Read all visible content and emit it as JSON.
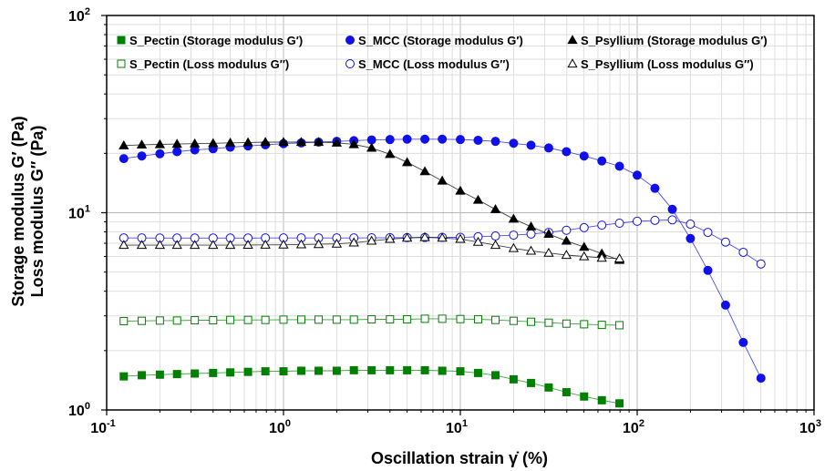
{
  "chart_data": {
    "type": "scatter",
    "xlabel": "Oscillation strain γ̇ (%)",
    "ylabel_line1": "Storage modulus  G′ (Pa)",
    "ylabel_line2": "Loss modulus  G″ (Pa)",
    "x_scale": "log",
    "y_scale": "log",
    "xlim": [
      0.1,
      1000
    ],
    "ylim": [
      1,
      100
    ],
    "x_ticks": [
      {
        "value": 0.1,
        "base": "10",
        "exp": "-1"
      },
      {
        "value": 1,
        "base": "10",
        "exp": "0"
      },
      {
        "value": 10,
        "base": "10",
        "exp": "1"
      },
      {
        "value": 100,
        "base": "10",
        "exp": "2"
      },
      {
        "value": 1000,
        "base": "10",
        "exp": "3"
      }
    ],
    "y_ticks": [
      {
        "value": 1,
        "base": "10",
        "exp": "0"
      },
      {
        "value": 10,
        "base": "10",
        "exp": "1"
      },
      {
        "value": 100,
        "base": "10",
        "exp": "2"
      }
    ],
    "grid": true,
    "legend_position": "top",
    "series": [
      {
        "name": "S_Pectin (Storage modulus G′)",
        "color": "#008000",
        "marker": "square",
        "filled": true,
        "x": [
          0.125,
          0.158,
          0.2,
          0.25,
          0.315,
          0.4,
          0.5,
          0.63,
          0.79,
          1.0,
          1.26,
          1.58,
          2.0,
          2.5,
          3.15,
          4.0,
          5.0,
          6.3,
          7.9,
          10.0,
          12.6,
          15.8,
          20.0,
          25.1,
          31.6,
          39.8,
          50.1,
          63.1,
          79.4
        ],
        "y": [
          1.48,
          1.5,
          1.51,
          1.52,
          1.53,
          1.54,
          1.55,
          1.56,
          1.57,
          1.57,
          1.58,
          1.58,
          1.58,
          1.59,
          1.59,
          1.59,
          1.59,
          1.59,
          1.58,
          1.57,
          1.54,
          1.5,
          1.43,
          1.37,
          1.3,
          1.23,
          1.17,
          1.12,
          1.08
        ]
      },
      {
        "name": "S_Pectin (Loss modulus G″)",
        "color": "#008000",
        "marker": "square",
        "filled": false,
        "x": [
          0.125,
          0.158,
          0.2,
          0.25,
          0.315,
          0.4,
          0.5,
          0.63,
          0.79,
          1.0,
          1.26,
          1.58,
          2.0,
          2.5,
          3.15,
          4.0,
          5.0,
          6.3,
          7.9,
          10.0,
          12.6,
          15.8,
          20.0,
          25.1,
          31.6,
          39.8,
          50.1,
          63.1,
          79.4
        ],
        "y": [
          2.82,
          2.83,
          2.84,
          2.84,
          2.85,
          2.85,
          2.86,
          2.86,
          2.86,
          2.87,
          2.87,
          2.87,
          2.87,
          2.87,
          2.88,
          2.88,
          2.88,
          2.9,
          2.9,
          2.89,
          2.88,
          2.86,
          2.83,
          2.8,
          2.77,
          2.74,
          2.72,
          2.7,
          2.69
        ]
      },
      {
        "name": "S_MCC (Storage modulus G′)",
        "color": "#1010e8",
        "marker": "circle",
        "filled": true,
        "x": [
          0.125,
          0.158,
          0.2,
          0.25,
          0.315,
          0.4,
          0.5,
          0.63,
          0.79,
          1.0,
          1.26,
          1.58,
          2.0,
          2.5,
          3.15,
          4.0,
          5.0,
          6.3,
          7.9,
          10.0,
          12.6,
          15.8,
          20.0,
          25.1,
          31.6,
          39.8,
          50.1,
          63.1,
          79.4,
          100,
          126,
          158,
          200,
          251,
          316,
          398,
          501
        ],
        "y": [
          18.8,
          19.4,
          19.9,
          20.4,
          20.8,
          21.1,
          21.5,
          21.8,
          22.1,
          22.4,
          22.6,
          22.8,
          23.0,
          23.2,
          23.4,
          23.5,
          23.6,
          23.6,
          23.6,
          23.5,
          23.3,
          23.0,
          22.5,
          22.0,
          21.3,
          20.4,
          19.4,
          18.3,
          17.2,
          15.5,
          13.3,
          10.4,
          7.4,
          5.1,
          3.4,
          2.2,
          1.45
        ]
      },
      {
        "name": "S_MCC (Loss modulus G″)",
        "color": "#1010e8",
        "marker": "circle",
        "filled": false,
        "x": [
          0.125,
          0.158,
          0.2,
          0.25,
          0.315,
          0.4,
          0.5,
          0.63,
          0.79,
          1.0,
          1.26,
          1.58,
          2.0,
          2.5,
          3.15,
          4.0,
          5.0,
          6.3,
          7.9,
          10.0,
          12.6,
          15.8,
          20.0,
          25.1,
          31.6,
          39.8,
          50.1,
          63.1,
          79.4,
          100,
          126,
          158,
          200,
          251,
          316,
          398,
          501
        ],
        "y": [
          7.45,
          7.45,
          7.44,
          7.44,
          7.44,
          7.44,
          7.44,
          7.44,
          7.45,
          7.45,
          7.45,
          7.45,
          7.45,
          7.45,
          7.46,
          7.47,
          7.48,
          7.49,
          7.5,
          7.5,
          7.55,
          7.62,
          7.7,
          7.8,
          7.95,
          8.15,
          8.4,
          8.65,
          8.85,
          9.05,
          9.15,
          9.2,
          8.75,
          7.95,
          7.1,
          6.3,
          5.5
        ]
      },
      {
        "name": "S_Psyllium (Storage modulus G′)",
        "color": "#000000",
        "marker": "triangle",
        "filled": true,
        "x": [
          0.125,
          0.158,
          0.2,
          0.25,
          0.315,
          0.4,
          0.5,
          0.63,
          0.79,
          1.0,
          1.26,
          1.58,
          2.0,
          2.5,
          3.15,
          4.0,
          5.0,
          6.3,
          7.9,
          10.0,
          12.6,
          15.8,
          20.0,
          25.1,
          31.6,
          39.8,
          50.1,
          63.1,
          79.4
        ],
        "y": [
          21.9,
          22.1,
          22.2,
          22.3,
          22.4,
          22.5,
          22.6,
          22.7,
          22.8,
          22.8,
          22.8,
          22.8,
          22.6,
          22.2,
          21.3,
          19.8,
          18.0,
          16.2,
          14.5,
          12.9,
          11.6,
          10.4,
          9.3,
          8.5,
          7.8,
          7.2,
          6.7,
          6.2,
          5.75
        ]
      },
      {
        "name": "S_Psyllium (Loss modulus G″)",
        "color": "#000000",
        "marker": "triangle",
        "filled": false,
        "x": [
          0.125,
          0.158,
          0.2,
          0.25,
          0.315,
          0.4,
          0.5,
          0.63,
          0.79,
          1.0,
          1.26,
          1.58,
          2.0,
          2.5,
          3.15,
          4.0,
          5.0,
          6.3,
          7.9,
          10.0,
          12.6,
          15.8,
          20.0,
          25.1,
          31.6,
          39.8,
          50.1,
          63.1,
          79.4
        ],
        "y": [
          6.85,
          6.85,
          6.85,
          6.85,
          6.85,
          6.85,
          6.85,
          6.86,
          6.87,
          6.88,
          6.9,
          6.92,
          6.95,
          7.05,
          7.2,
          7.35,
          7.45,
          7.5,
          7.45,
          7.35,
          7.1,
          6.85,
          6.6,
          6.4,
          6.25,
          6.1,
          6.0,
          5.9,
          5.85
        ]
      }
    ]
  }
}
